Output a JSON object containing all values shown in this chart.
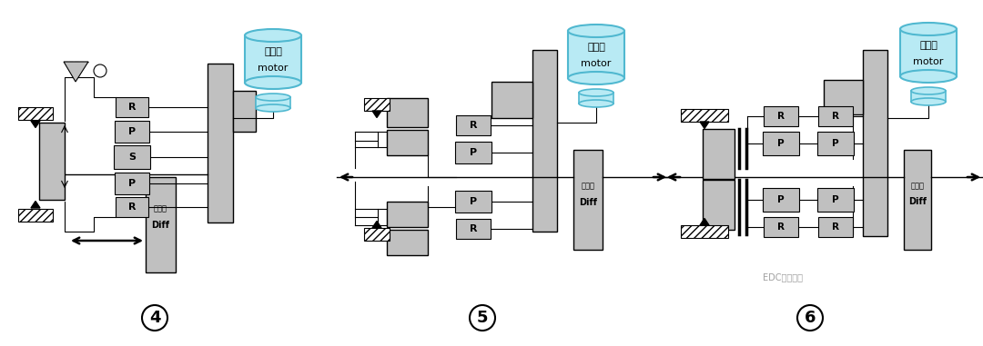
{
  "bg_color": "#ffffff",
  "gray_light": "#c0c0c0",
  "cyan_fill": "#b8eaf4",
  "cyan_border": "#50b8d0",
  "black": "#000000",
  "motor_text_line1": "电动机",
  "motor_text_line2": "motor",
  "diff_text_line1": "差速器",
  "diff_text_line2": "Diff",
  "watermark": "EDC电驱未来"
}
